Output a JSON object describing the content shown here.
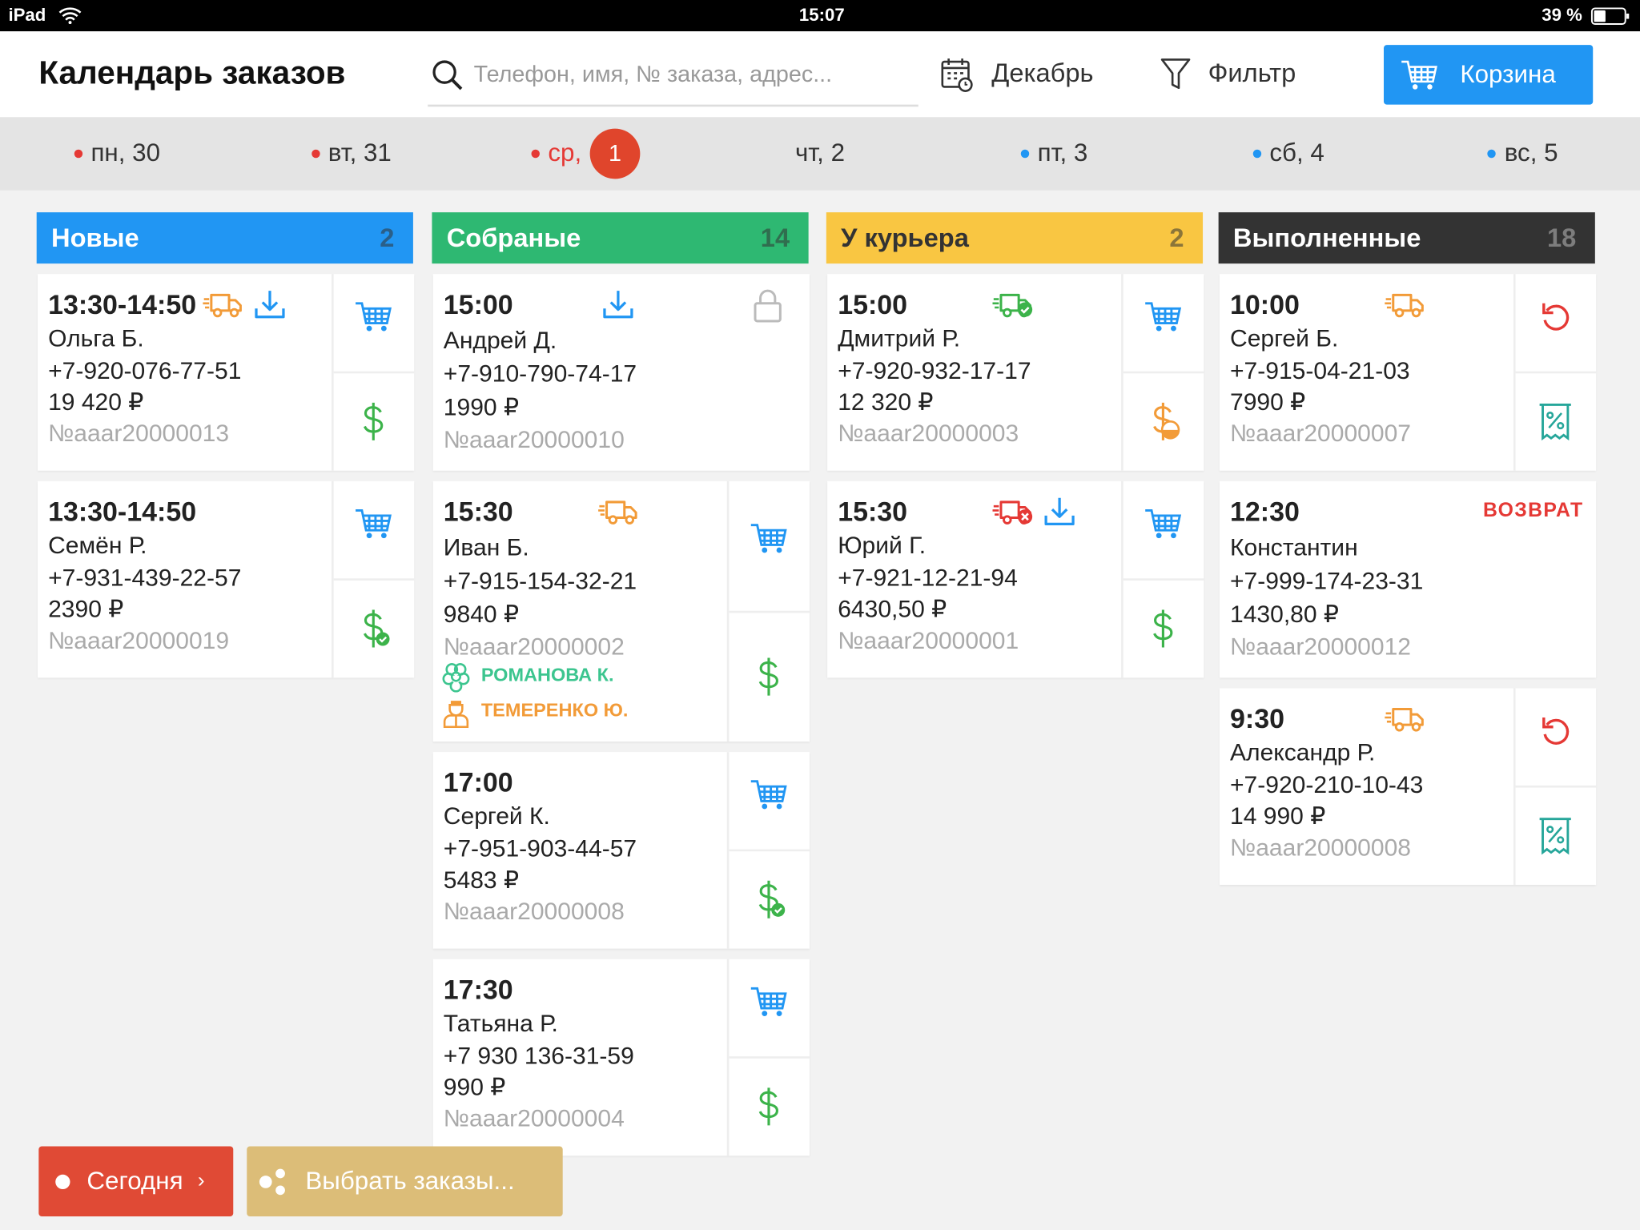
{
  "status_bar": {
    "device": "iPad",
    "time": "15:07",
    "battery": "39 %"
  },
  "header": {
    "title": "Календарь заказов",
    "search_placeholder": "Телефон, имя, № заказа, адрес...",
    "month": "Декабрь",
    "filter": "Фильтр",
    "cart": "Корзина"
  },
  "days": [
    {
      "label": "пн, 30",
      "dot": "#e53935"
    },
    {
      "label": "вт, 31",
      "dot": "#e53935"
    },
    {
      "label": "ср,",
      "dot": "#e53935",
      "today": true,
      "badge": "1"
    },
    {
      "label": "чт, 2"
    },
    {
      "label": "пт, 3",
      "dot": "#2196f3"
    },
    {
      "label": "сб, 4",
      "dot": "#2196f3"
    },
    {
      "label": "вс, 5",
      "dot": "#2196f3"
    }
  ],
  "columns": [
    {
      "title": "Новые",
      "count": 2,
      "color": "#2196f3",
      "text_color": "#ffffff",
      "orders": [
        {
          "time": "13:30-14:50",
          "name": "Ольга Б.",
          "phone": "+7-920-076-77-51",
          "amount": "19 420 ₽",
          "number": "№aaar20000013",
          "status_icons": [
            "truck",
            "download"
          ],
          "actions": [
            "cart",
            "dollar"
          ]
        },
        {
          "time": "13:30-14:50",
          "name": "Семён Р.",
          "phone": "+7-931-439-22-57",
          "amount": "2390 ₽",
          "number": "№aaar20000019",
          "status_icons": [],
          "actions": [
            "cart",
            "dollar-check"
          ]
        }
      ]
    },
    {
      "title": "Собраные",
      "count": 14,
      "color": "#2eb872",
      "text_color": "#ffffff",
      "orders": [
        {
          "time": "15:00",
          "name": "Андрей Д.",
          "phone": "+7-910-790-74-17",
          "amount": "1990 ₽",
          "number": "№aaar20000010",
          "status_icons": [
            "download"
          ],
          "actions": [],
          "corner_icon": "lock"
        },
        {
          "time": "15:30",
          "name": "Иван Б.",
          "phone": "+7-915-154-32-21",
          "amount": "9840 ₽",
          "number": "№aaar20000002",
          "status_icons": [
            "truck"
          ],
          "actions": [
            "cart",
            "dollar"
          ],
          "florist": "РОМАНОВА К.",
          "courier": "ТЕМЕРЕНКО Ю."
        },
        {
          "time": "17:00",
          "name": "Сергей К.",
          "phone": "+7-951-903-44-57",
          "amount": "5483 ₽",
          "number": "№aaar20000008",
          "status_icons": [],
          "actions": [
            "cart",
            "dollar-check"
          ]
        },
        {
          "time": "17:30",
          "name": "Татьяна Р.",
          "phone": "+7 930 136-31-59",
          "amount": "990 ₽",
          "number": "№aaar20000004",
          "status_icons": [],
          "actions": [
            "cart",
            "dollar"
          ]
        }
      ]
    },
    {
      "title": "У курьера",
      "count": 2,
      "color": "#f9c642",
      "text_color": "#333333",
      "orders": [
        {
          "time": "15:00",
          "name": "Дмитрий Р.",
          "phone": "+7-920-932-17-17",
          "amount": "12 320 ₽",
          "number": "№aaar20000003",
          "status_icons": [
            "truck-check"
          ],
          "actions": [
            "cart",
            "coin"
          ]
        },
        {
          "time": "15:30",
          "name": "Юрий Г.",
          "phone": "+7-921-12-21-94",
          "amount": "6430,50 ₽",
          "number": "№aaar20000001",
          "status_icons": [
            "truck-cancel",
            "download"
          ],
          "actions": [
            "cart",
            "dollar"
          ]
        }
      ]
    },
    {
      "title": "Выполненные",
      "count": 18,
      "color": "#333333",
      "text_color": "#ffffff",
      "orders": [
        {
          "time": "10:00",
          "name": "Сергей Б.",
          "phone": "+7-915-04-21-03",
          "amount": "7990 ₽",
          "number": "№aaar20000007",
          "status_icons": [
            "truck"
          ],
          "actions": [
            "return",
            "receipt"
          ]
        },
        {
          "time": "12:30",
          "name": "Константин",
          "phone": "+7-999-174-23-31",
          "amount": "1430,80 ₽",
          "number": "№aaar20000012",
          "status_icons": [],
          "actions": [],
          "return_label": "ВОЗВРАТ"
        },
        {
          "time": "9:30",
          "name": "Александр Р.",
          "phone": "+7-920-210-10-43",
          "amount": "14 990 ₽",
          "number": "№aaar20000008",
          "status_icons": [
            "truck"
          ],
          "actions": [
            "return",
            "receipt"
          ]
        }
      ]
    }
  ],
  "footer": {
    "today": "Сегодня",
    "today_arrow": "›",
    "select": "Выбрать заказы..."
  }
}
